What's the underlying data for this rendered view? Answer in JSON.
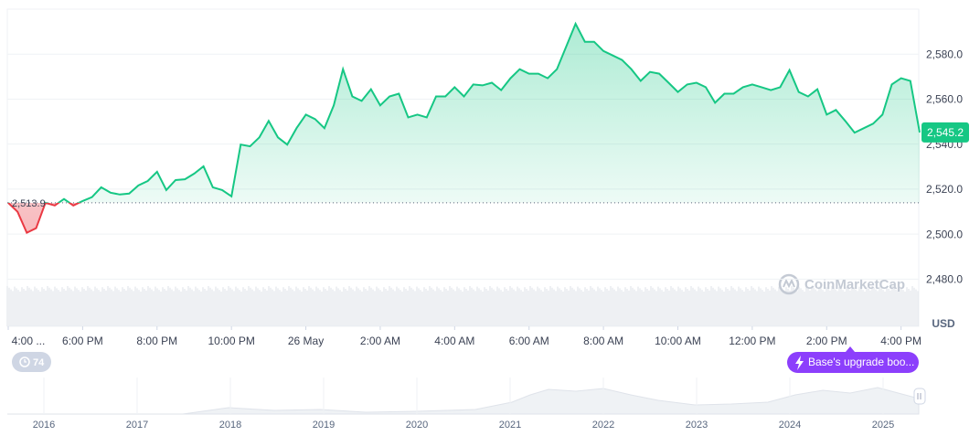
{
  "chart_data": {
    "type": "line",
    "values": [
      2513.9,
      2509.9,
      2500.6,
      2502.6,
      2513.9,
      2512.7,
      2515.6,
      2512.7,
      2514.7,
      2516.4,
      2520.8,
      2518.4,
      2517.6,
      2518.0,
      2521.6,
      2523.6,
      2527.7,
      2519.6,
      2524.0,
      2524.4,
      2526.9,
      2530.1,
      2520.8,
      2519.6,
      2516.8,
      2539.8,
      2539.0,
      2543.0,
      2550.3,
      2543.0,
      2539.8,
      2547.1,
      2553.1,
      2551.1,
      2547.1,
      2557.2,
      2573.3,
      2561.2,
      2559.2,
      2564.4,
      2557.2,
      2561.2,
      2562.4,
      2551.9,
      2553.1,
      2551.9,
      2561.2,
      2561.2,
      2565.3,
      2561.2,
      2566.5,
      2566.1,
      2567.3,
      2564.0,
      2569.3,
      2573.3,
      2571.3,
      2571.3,
      2569.3,
      2573.3,
      2583.4,
      2593.5,
      2585.5,
      2585.5,
      2581.4,
      2579.4,
      2577.4,
      2573.3,
      2568.1,
      2572.1,
      2571.3,
      2567.3,
      2563.2,
      2566.5,
      2567.3,
      2565.3,
      2558.4,
      2562.4,
      2562.4,
      2565.3,
      2566.5,
      2565.3,
      2564.0,
      2565.3,
      2572.9,
      2563.2,
      2561.2,
      2564.4,
      2553.1,
      2555.2,
      2550.3,
      2545.1,
      2547.1,
      2549.1,
      2553.1,
      2566.5,
      2569.3,
      2568.1,
      2545.2
    ],
    "current_label": "2,545.2",
    "reference": {
      "value": 2513.9,
      "label": "2,513.9"
    },
    "up_color": "#16c784",
    "down_color": "#ea3943",
    "ylim": [
      2459,
      2600
    ],
    "yticks": [
      {
        "value": 2480,
        "label": "2,480.0"
      },
      {
        "value": 2500,
        "label": "2,500.0"
      },
      {
        "value": 2520,
        "label": "2,520.0"
      },
      {
        "value": 2540,
        "label": "2,540.0"
      },
      {
        "value": 2560,
        "label": "2,560.0"
      },
      {
        "value": 2580,
        "label": "2,580.0"
      }
    ],
    "xlim": [
      0,
      98
    ],
    "xticks": [
      {
        "value": 0,
        "label": "4:00 ..."
      },
      {
        "value": 8,
        "label": "6:00 PM"
      },
      {
        "value": 16,
        "label": "8:00 PM"
      },
      {
        "value": 24,
        "label": "10:00 PM"
      },
      {
        "value": 32,
        "label": "26 May"
      },
      {
        "value": 40,
        "label": "2:00 AM"
      },
      {
        "value": 48,
        "label": "4:00 AM"
      },
      {
        "value": 56,
        "label": "6:00 AM"
      },
      {
        "value": 64,
        "label": "8:00 AM"
      },
      {
        "value": 72,
        "label": "10:00 AM"
      },
      {
        "value": 80,
        "label": "12:00 PM"
      },
      {
        "value": 88,
        "label": "2:00 PM"
      },
      {
        "value": 96,
        "label": "4:00 PM"
      }
    ],
    "currency": "USD",
    "grid": true
  },
  "watermark": "CoinMarketCap",
  "badge": "74",
  "event": "Base's upgrade boo...",
  "navigator_years": [
    "2016",
    "2017",
    "2018",
    "2019",
    "2020",
    "2021",
    "2022",
    "2023",
    "2024",
    "2025"
  ]
}
